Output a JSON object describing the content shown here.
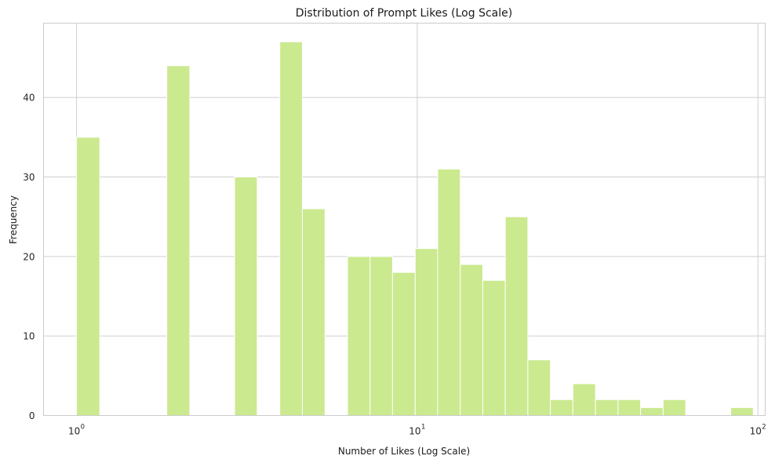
{
  "chart_data": {
    "type": "bar",
    "title": "Distribution of Prompt Likes (Log Scale)",
    "xlabel": "Number of Likes (Log Scale)",
    "ylabel": "Frequency",
    "x_scale": "log",
    "xlim": [
      0.8,
      105
    ],
    "ylim": [
      0,
      49.35
    ],
    "x_ticks": [
      {
        "value": 1,
        "base": "10",
        "exp": "0"
      },
      {
        "value": 10,
        "base": "10",
        "exp": "1"
      },
      {
        "value": 100,
        "base": "10",
        "exp": "2"
      }
    ],
    "y_ticks": [
      0,
      10,
      20,
      30,
      40
    ],
    "grid": true,
    "bar_color": "#cbe98f",
    "bins": [
      {
        "x0": 1.0,
        "x1": 1.17,
        "count": 35
      },
      {
        "x0": 1.17,
        "x1": 1.36,
        "count": 0
      },
      {
        "x0": 1.36,
        "x1": 1.58,
        "count": 0
      },
      {
        "x0": 1.58,
        "x1": 1.84,
        "count": 0
      },
      {
        "x0": 1.84,
        "x1": 2.15,
        "count": 44
      },
      {
        "x0": 2.15,
        "x1": 2.5,
        "count": 0
      },
      {
        "x0": 2.5,
        "x1": 2.91,
        "count": 0
      },
      {
        "x0": 2.91,
        "x1": 3.39,
        "count": 30
      },
      {
        "x0": 3.39,
        "x1": 3.95,
        "count": 0
      },
      {
        "x0": 3.95,
        "x1": 4.6,
        "count": 47
      },
      {
        "x0": 4.6,
        "x1": 5.36,
        "count": 26
      },
      {
        "x0": 5.36,
        "x1": 6.24,
        "count": 0
      },
      {
        "x0": 6.24,
        "x1": 7.27,
        "count": 20
      },
      {
        "x0": 7.27,
        "x1": 8.46,
        "count": 20
      },
      {
        "x0": 8.46,
        "x1": 9.86,
        "count": 18
      },
      {
        "x0": 9.86,
        "x1": 11.48,
        "count": 21
      },
      {
        "x0": 11.48,
        "x1": 13.37,
        "count": 31
      },
      {
        "x0": 13.37,
        "x1": 15.57,
        "count": 19
      },
      {
        "x0": 15.57,
        "x1": 18.13,
        "count": 17
      },
      {
        "x0": 18.13,
        "x1": 21.11,
        "count": 25
      },
      {
        "x0": 21.11,
        "x1": 24.59,
        "count": 7
      },
      {
        "x0": 24.59,
        "x1": 28.63,
        "count": 2
      },
      {
        "x0": 28.63,
        "x1": 33.35,
        "count": 4
      },
      {
        "x0": 33.35,
        "x1": 38.84,
        "count": 2
      },
      {
        "x0": 38.84,
        "x1": 45.23,
        "count": 2
      },
      {
        "x0": 45.23,
        "x1": 52.67,
        "count": 1
      },
      {
        "x0": 52.67,
        "x1": 61.34,
        "count": 2
      },
      {
        "x0": 61.34,
        "x1": 71.43,
        "count": 0
      },
      {
        "x0": 71.43,
        "x1": 83.19,
        "count": 0
      },
      {
        "x0": 83.19,
        "x1": 96.88,
        "count": 1
      }
    ]
  }
}
